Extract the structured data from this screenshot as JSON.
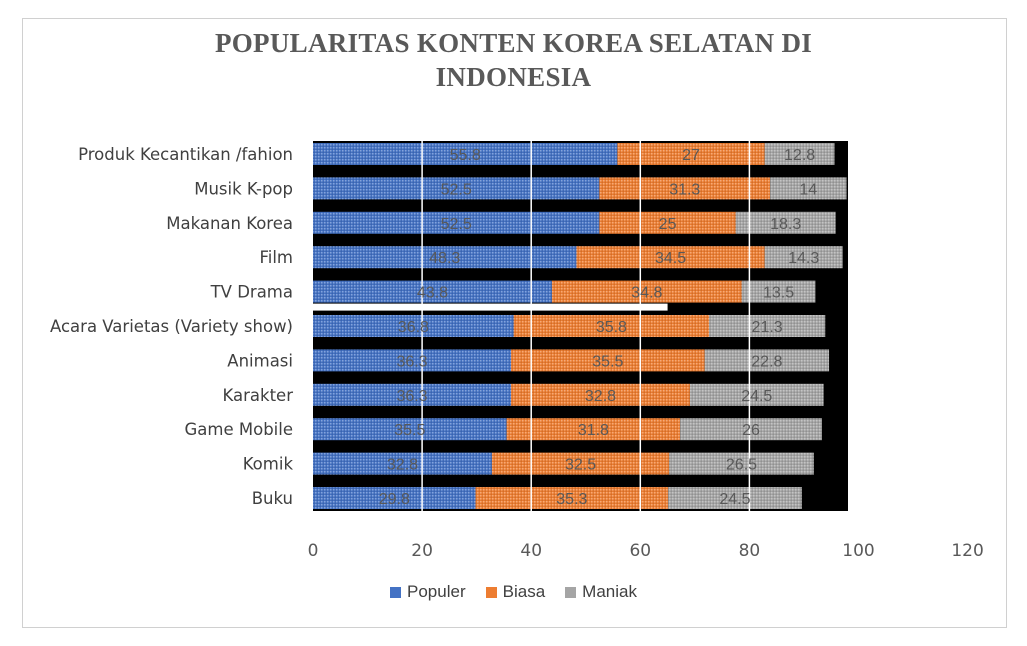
{
  "chart_data": {
    "type": "bar",
    "orientation": "horizontal",
    "stacked": true,
    "title": "POPULARITAS KONTEN KOREA SELATAN DI INDONESIA",
    "title_lines": [
      "POPULARITAS KONTEN KOREA SELATAN DI",
      "INDONESIA"
    ],
    "categories": [
      "Produk Kecantikan /fahion",
      "Musik K-pop",
      "Makanan Korea",
      "Film",
      "TV Drama",
      "Acara Varietas (Variety show)",
      "Animasi",
      "Karakter",
      "Game Mobile",
      "Komik",
      "Buku"
    ],
    "series": [
      {
        "name": "Populer",
        "color": "#4472c4",
        "values": [
          55.8,
          52.5,
          52.5,
          48.3,
          43.8,
          36.8,
          36.3,
          36.3,
          35.5,
          32.8,
          29.8
        ],
        "labels": [
          "55.8",
          "52.5",
          "52.5",
          "48.3",
          "43.8",
          "36.8",
          "36.3",
          "36.3",
          "35.5",
          "32.8",
          "29.8"
        ]
      },
      {
        "name": "Biasa",
        "color": "#ed7d31",
        "values": [
          27,
          31.3,
          25,
          34.5,
          34.8,
          35.8,
          35.5,
          32.8,
          31.8,
          32.5,
          35.3
        ],
        "labels": [
          "27",
          "31.3",
          "25",
          "34.5",
          "34.8",
          "35.8",
          "35.5",
          "32.8",
          "31.8",
          "32.5",
          "35.3"
        ]
      },
      {
        "name": "Maniak",
        "color": "#a5a5a5",
        "values": [
          12.8,
          14,
          18.3,
          14.3,
          13.5,
          21.3,
          22.8,
          24.5,
          26,
          26.5,
          24.5
        ],
        "labels": [
          "12.8",
          "14",
          "18.3",
          "14.3",
          "13.5",
          "21.3",
          "22.8",
          "24.5",
          "26",
          "26.5",
          "24.5"
        ]
      }
    ],
    "xlim": [
      0,
      120
    ],
    "xticks": [
      "0",
      "20",
      "40",
      "60",
      "80",
      "100",
      "120"
    ],
    "grid": true,
    "legend_position": "bottom",
    "colors": {
      "background_band": "#000000",
      "gridline": "#ffffff",
      "label_text": "#595959",
      "title": "#595959",
      "axis_text": "#595959"
    }
  }
}
